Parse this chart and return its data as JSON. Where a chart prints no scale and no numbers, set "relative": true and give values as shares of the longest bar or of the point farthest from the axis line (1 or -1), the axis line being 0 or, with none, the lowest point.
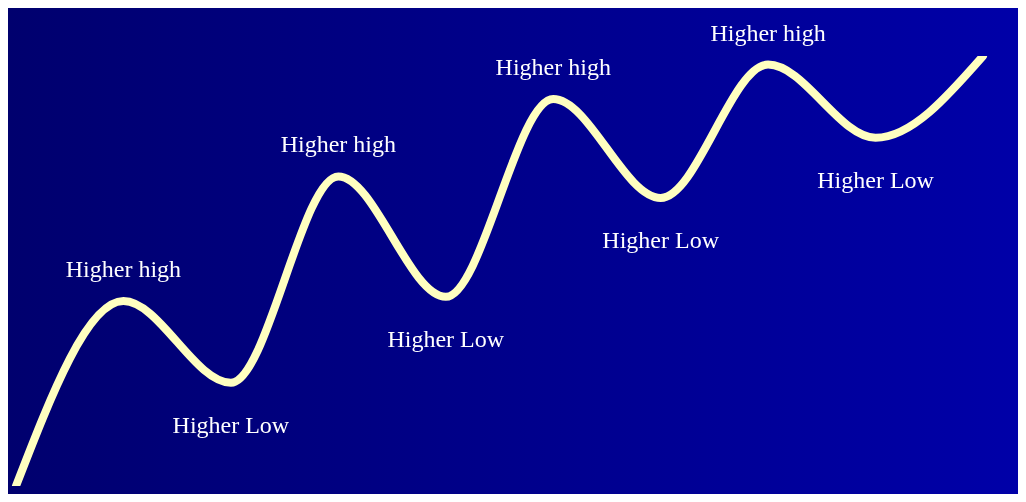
{
  "chart_data": {
    "type": "line",
    "relative": true,
    "categories": [
      null,
      null,
      null,
      null,
      null,
      null,
      null,
      null,
      null,
      null
    ],
    "series": [
      {
        "color": "#ffffc0",
        "values": [
          0,
          0.43,
          0.24,
          0.72,
          0.44,
          0.9,
          0.67,
          0.98,
          0.81,
          1
        ]
      }
    ],
    "annotations": [
      {
        "text": "Higher high",
        "y": 0.43
      },
      {
        "text": "Higher Low",
        "y": 0.24
      },
      {
        "text": "Higher high",
        "y": 0.72
      },
      {
        "text": "Higher Low",
        "y": 0.44
      },
      {
        "text": "Higher high",
        "y": 0.9
      },
      {
        "text": "Higher Low",
        "y": 0.67
      },
      {
        "text": "Higher high",
        "y": 0.98
      },
      {
        "text": "Higher Low",
        "y": 0.81
      }
    ],
    "grid": false,
    "legend": false,
    "marker": "none",
    "line_style": "solid"
  }
}
